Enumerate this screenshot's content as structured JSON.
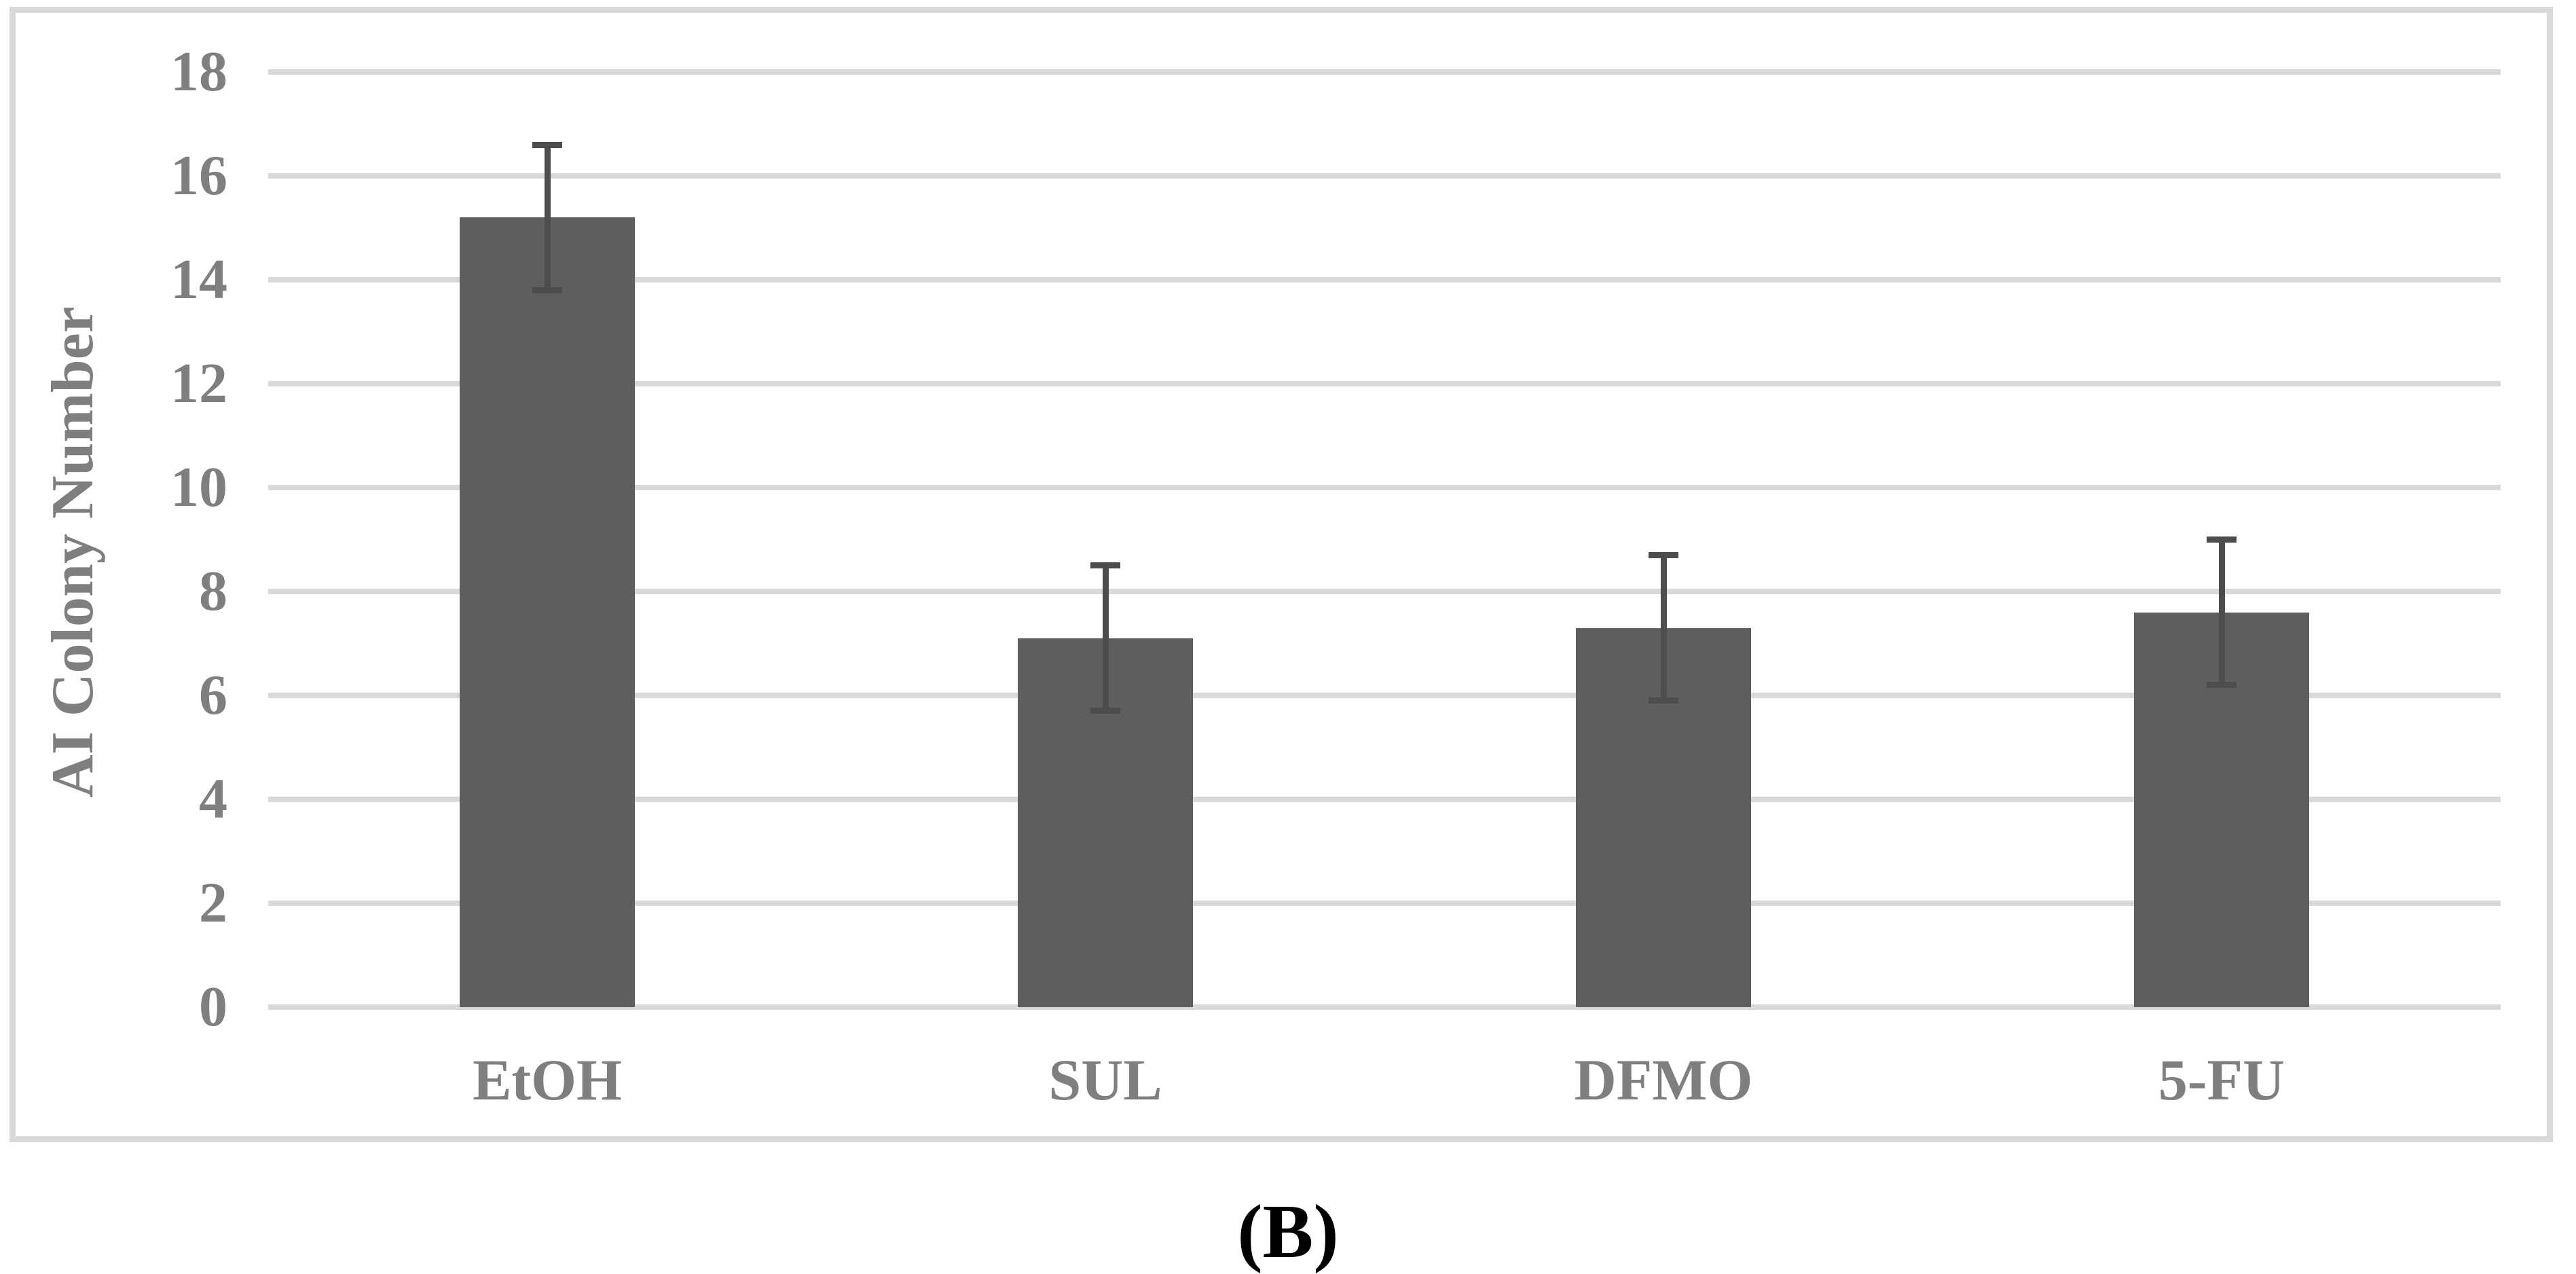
{
  "figure": {
    "caption": "(B)"
  },
  "colors": {
    "bar_fill": "#5e5e5e",
    "error_bar": "#4d4d4d",
    "gridline": "#d9d9d9",
    "figure_border": "#d9d9d9",
    "axis_text": "#7f7f7f",
    "caption_text": "#000000",
    "background": "#ffffff"
  },
  "chart_data": {
    "type": "bar",
    "title": "",
    "xlabel": "",
    "ylabel": "AI Colony Number",
    "categories": [
      "EtOH",
      "SUL",
      "DFMO",
      "5-FU"
    ],
    "values": [
      15.2,
      7.1,
      7.3,
      7.6
    ],
    "error_bars": [
      1.4,
      1.4,
      1.4,
      1.4
    ],
    "error_bar_tops": [
      16.6,
      8.5,
      8.7,
      9.0
    ],
    "error_bar_bottoms": [
      13.8,
      5.7,
      5.9,
      6.2
    ],
    "ylim": [
      0,
      18
    ],
    "ytick_step": 2,
    "ytick_labels": [
      "0",
      "2",
      "4",
      "6",
      "8",
      "10",
      "12",
      "14",
      "16",
      "18"
    ],
    "grid": "horizontal",
    "legend_position": "none",
    "caption": "(B)"
  }
}
